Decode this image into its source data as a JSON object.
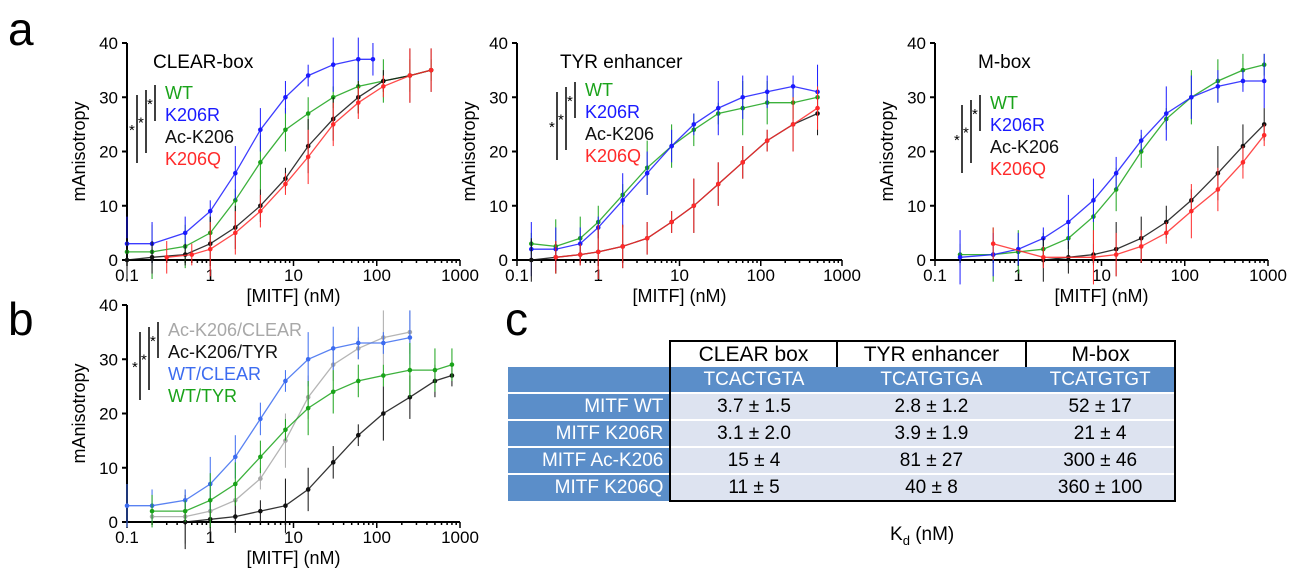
{
  "panel_letters": {
    "a": "a",
    "b": "b",
    "c": "c"
  },
  "colors": {
    "WT": "#1aa31a",
    "K206R": "#1a1aff",
    "Ac-K206": "#111111",
    "K206Q": "#ff2a2a",
    "Ac-K206/CLEAR": "#a8a8a8",
    "Ac-K206/TYR": "#111111",
    "WT/CLEAR": "#3c6cf0",
    "WT/TYR": "#1aa31a"
  },
  "chart_data": [
    {
      "type": "scatter",
      "title": "CLEAR-box",
      "xlabel": "[MITF] (nM)",
      "ylabel": "mAnisotropy",
      "xscale": "log",
      "xlim": [
        0.1,
        1000
      ],
      "ylim": [
        0,
        40
      ],
      "xticks": [
        "0.1",
        "1",
        "10",
        "100",
        "1000"
      ],
      "yticks": [
        "0",
        "10",
        "20",
        "30",
        "40"
      ],
      "legend": [
        "WT",
        "K206R",
        "Ac-K206",
        "K206Q"
      ],
      "series": [
        {
          "name": "WT",
          "x": [
            0.1,
            0.2,
            0.5,
            1,
            2,
            4,
            8,
            15,
            30,
            60,
            120,
            250,
            450
          ],
          "y": [
            1.5,
            1.5,
            2.5,
            5,
            11,
            18,
            24,
            27,
            30,
            32,
            33,
            34,
            35
          ]
        },
        {
          "name": "K206R",
          "x": [
            0.1,
            0.2,
            0.5,
            1,
            2,
            4,
            8,
            15,
            30,
            60,
            90
          ],
          "y": [
            3,
            3,
            5,
            9,
            16,
            24,
            30,
            34,
            36,
            37,
            37
          ]
        },
        {
          "name": "Ac-K206",
          "x": [
            0.1,
            0.2,
            0.5,
            1,
            2,
            4,
            8,
            15,
            30,
            60,
            120,
            250,
            450
          ],
          "y": [
            0,
            0.5,
            1,
            3,
            6,
            10,
            15,
            21,
            26,
            30,
            33,
            34,
            35
          ]
        },
        {
          "name": "K206Q",
          "x": [
            0.3,
            0.6,
            1,
            2,
            4,
            8,
            15,
            30,
            60,
            120,
            250,
            450
          ],
          "y": [
            0.5,
            1,
            2,
            5,
            9,
            14,
            19,
            25,
            29,
            32,
            34,
            35
          ]
        }
      ]
    },
    {
      "type": "scatter",
      "title": "TYR enhancer",
      "xlabel": "[MITF] (nM)",
      "ylabel": "mAnisotropy",
      "xscale": "log",
      "xlim": [
        0.1,
        1000
      ],
      "ylim": [
        0,
        40
      ],
      "xticks": [
        "0.1",
        "1",
        "10",
        "100",
        "1000"
      ],
      "yticks": [
        "0",
        "10",
        "20",
        "30",
        "40"
      ],
      "legend": [
        "WT",
        "K206R",
        "Ac-K206",
        "K206Q"
      ],
      "series": [
        {
          "name": "WT",
          "x": [
            0.15,
            0.3,
            0.6,
            1,
            2,
            4,
            8,
            15,
            30,
            60,
            120,
            250,
            500
          ],
          "y": [
            3,
            2.5,
            4,
            7,
            12,
            17,
            21,
            24,
            27,
            28,
            29,
            29,
            30
          ]
        },
        {
          "name": "K206R",
          "x": [
            0.15,
            0.3,
            0.6,
            1,
            2,
            4,
            8,
            15,
            30,
            60,
            120,
            250,
            500
          ],
          "y": [
            2,
            2,
            3,
            6,
            11,
            16,
            21,
            25,
            28,
            30,
            31,
            32,
            31
          ]
        },
        {
          "name": "Ac-K206",
          "x": [
            0.15,
            0.3,
            0.6,
            1,
            2,
            4,
            8,
            15,
            30,
            60,
            120,
            250,
            500
          ],
          "y": [
            0,
            0.5,
            1,
            1.5,
            2.5,
            4,
            7,
            10,
            14,
            18,
            22,
            25,
            27
          ]
        },
        {
          "name": "K206Q",
          "x": [
            0.3,
            0.6,
            1,
            2,
            4,
            8,
            15,
            30,
            60,
            120,
            250,
            500
          ],
          "y": [
            0.5,
            1,
            1.5,
            2.5,
            4,
            7,
            10,
            14,
            18,
            22,
            25,
            28
          ]
        }
      ]
    },
    {
      "type": "scatter",
      "title": "M-box",
      "xlabel": "[MITF] (nM)",
      "ylabel": "mAnisotropy",
      "xscale": "log",
      "xlim": [
        0.1,
        1000
      ],
      "ylim": [
        0,
        40
      ],
      "xticks": [
        "0.1",
        "1",
        "10",
        "100",
        "1000"
      ],
      "yticks": [
        "0",
        "10",
        "20",
        "30",
        "40"
      ],
      "legend": [
        "WT",
        "K206R",
        "Ac-K206",
        "K206Q"
      ],
      "series": [
        {
          "name": "WT",
          "x": [
            0.2,
            0.5,
            1,
            2,
            4,
            8,
            15,
            30,
            60,
            120,
            250,
            500,
            900
          ],
          "y": [
            1,
            1,
            1.5,
            2,
            4,
            8,
            13,
            20,
            26,
            30,
            33,
            35,
            36
          ]
        },
        {
          "name": "K206R",
          "x": [
            0.2,
            0.5,
            1,
            2,
            4,
            8,
            15,
            30,
            60,
            120,
            250,
            500,
            900
          ],
          "y": [
            0.5,
            1,
            2,
            4,
            7,
            11,
            16,
            22,
            27,
            30,
            32,
            33,
            33
          ]
        },
        {
          "name": "Ac-K206",
          "x": [
            2,
            4,
            8,
            15,
            30,
            60,
            120,
            250,
            500,
            900
          ],
          "y": [
            0,
            0.5,
            1,
            2,
            4,
            7,
            11,
            16,
            21,
            25
          ]
        },
        {
          "name": "K206Q",
          "x": [
            0.5,
            2,
            8,
            15,
            30,
            60,
            120,
            250,
            500,
            900
          ],
          "y": [
            3,
            0.5,
            0.5,
            1,
            2.5,
            5,
            9,
            13,
            18,
            23
          ]
        }
      ]
    },
    {
      "type": "scatter",
      "title": "",
      "xlabel": "[MITF] (nM)",
      "ylabel": "mAnisotropy",
      "xscale": "log",
      "xlim": [
        0.1,
        1000
      ],
      "ylim": [
        0,
        40
      ],
      "xticks": [
        "0.1",
        "1",
        "10",
        "100",
        "1000"
      ],
      "yticks": [
        "0",
        "10",
        "20",
        "30",
        "40"
      ],
      "legend": [
        "Ac-K206/CLEAR",
        "Ac-K206/TYR",
        "WT/CLEAR",
        "WT/TYR"
      ],
      "series": [
        {
          "name": "Ac-K206/CLEAR",
          "x": [
            0.2,
            0.5,
            1,
            2,
            4,
            8,
            15,
            30,
            60,
            120,
            250
          ],
          "y": [
            1,
            1,
            2,
            4,
            8,
            15,
            23,
            29,
            32,
            34,
            35
          ]
        },
        {
          "name": "Ac-K206/TYR",
          "x": [
            0.5,
            1,
            2,
            4,
            8,
            15,
            30,
            60,
            120,
            250,
            500,
            800
          ],
          "y": [
            0,
            0.5,
            1,
            2,
            3,
            6,
            11,
            16,
            20,
            23,
            26,
            27
          ]
        },
        {
          "name": "WT/CLEAR",
          "x": [
            0.1,
            0.2,
            0.5,
            1,
            2,
            4,
            8,
            15,
            30,
            60,
            120,
            250
          ],
          "y": [
            3,
            3,
            4,
            7,
            12,
            19,
            26,
            30,
            32,
            33,
            33,
            34
          ]
        },
        {
          "name": "WT/TYR",
          "x": [
            0.2,
            0.5,
            1,
            2,
            4,
            8,
            15,
            30,
            60,
            120,
            250,
            500,
            800
          ],
          "y": [
            2,
            2,
            4,
            7,
            12,
            17,
            21,
            24,
            26,
            27,
            28,
            28,
            29
          ]
        }
      ]
    }
  ],
  "significance": {
    "star": "*"
  },
  "table": {
    "headers": [
      "CLEAR box",
      "TYR enhancer",
      "M-box"
    ],
    "sequences": [
      "TCACTGTA",
      "TCATGTGA",
      "TCATGTGT"
    ],
    "rows": [
      {
        "label": "MITF WT",
        "values": [
          "3.7 ± 1.5",
          "2.8 ± 1.2",
          "52 ± 17"
        ]
      },
      {
        "label": "MITF K206R",
        "values": [
          "3.1 ± 2.0",
          "3.9 ± 1.9",
          "21 ± 4"
        ]
      },
      {
        "label": "MITF Ac-K206",
        "values": [
          "15 ± 4",
          "81 ± 27",
          "300 ± 46"
        ]
      },
      {
        "label": "MITF K206Q",
        "values": [
          "11 ± 5",
          "40 ± 8",
          "360 ± 100"
        ]
      }
    ],
    "kd_label": "K",
    "kd_sub": "d",
    "kd_unit": " (nM)"
  }
}
